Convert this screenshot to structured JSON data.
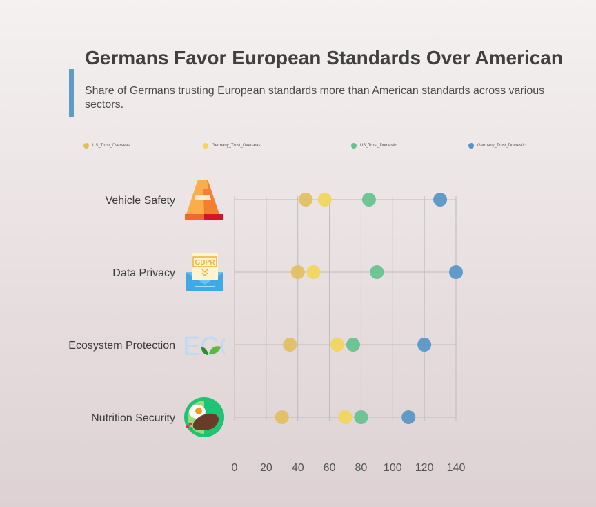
{
  "colors": {
    "accent": "#5f9bc7",
    "grid": "#bcbcbc",
    "axis": "#a9a9a9"
  },
  "chart_data": {
    "type": "scatter",
    "title": "Germans Favor European Standards Over American",
    "subtitle": "Share of Germans trusting European standards more than American standards across various sectors.",
    "categories": [
      "Vehicle Safety",
      "Data Privacy",
      "Ecosystem Protection",
      "Nutrition Security"
    ],
    "category_icons": [
      "traffic-cone-icon",
      "gdpr-envelope-icon",
      "eco-leaf-icon",
      "steak-plate-icon"
    ],
    "xlim": [
      0,
      140
    ],
    "xticks": [
      0,
      20,
      40,
      60,
      80,
      100,
      120,
      140
    ],
    "grid": true,
    "legend_position": "top",
    "series": [
      {
        "name": "US_Trust_Overseas",
        "color": "#e2bf5e",
        "values": [
          45,
          40,
          35,
          30
        ]
      },
      {
        "name": "Germany_Trust_Overseas",
        "color": "#f3d659",
        "values": [
          57,
          50,
          65,
          70
        ]
      },
      {
        "name": "US_Trust_Domestic",
        "color": "#64c28c",
        "values": [
          85,
          90,
          75,
          80
        ]
      },
      {
        "name": "Germany_Trust_Domestic",
        "color": "#5596c7",
        "values": [
          130,
          140,
          120,
          110
        ]
      }
    ]
  }
}
